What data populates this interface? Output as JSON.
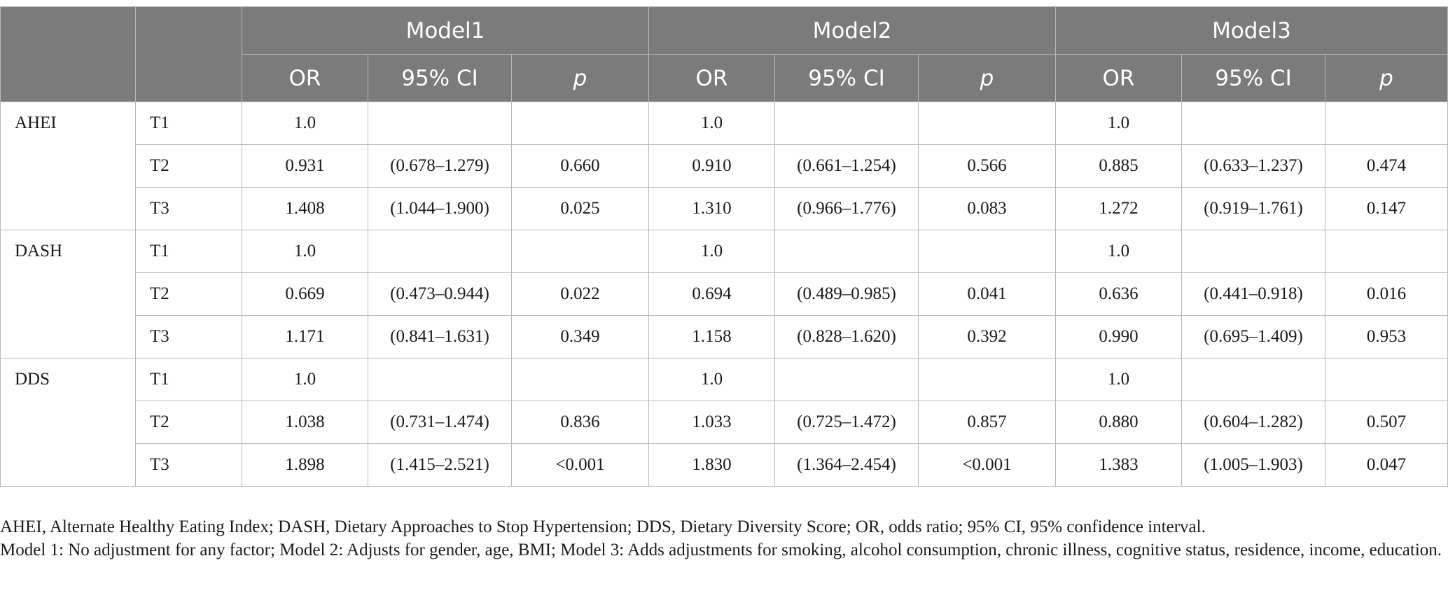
{
  "table": {
    "models": [
      "Model1",
      "Model2",
      "Model3"
    ],
    "subheaders": [
      "OR",
      "95% CI",
      "p"
    ],
    "groups": [
      {
        "measure": "AHEI",
        "rows": [
          {
            "tertile": "T1",
            "values": [
              "1.0",
              "",
              "",
              "1.0",
              "",
              "",
              "1.0",
              "",
              ""
            ]
          },
          {
            "tertile": "T2",
            "values": [
              "0.931",
              "(0.678–1.279)",
              "0.660",
              "0.910",
              "(0.661–1.254)",
              "0.566",
              "0.885",
              "(0.633–1.237)",
              "0.474"
            ]
          },
          {
            "tertile": "T3",
            "values": [
              "1.408",
              "(1.044–1.900)",
              "0.025",
              "1.310",
              "(0.966–1.776)",
              "0.083",
              "1.272",
              "(0.919–1.761)",
              "0.147"
            ]
          }
        ]
      },
      {
        "measure": "DASH",
        "rows": [
          {
            "tertile": "T1",
            "values": [
              "1.0",
              "",
              "",
              "1.0",
              "",
              "",
              "1.0",
              "",
              ""
            ]
          },
          {
            "tertile": "T2",
            "values": [
              "0.669",
              "(0.473–0.944)",
              "0.022",
              "0.694",
              "(0.489–0.985)",
              "0.041",
              "0.636",
              "(0.441–0.918)",
              "0.016"
            ]
          },
          {
            "tertile": "T3",
            "values": [
              "1.171",
              "(0.841–1.631)",
              "0.349",
              "1.158",
              "(0.828–1.620)",
              "0.392",
              "0.990",
              "(0.695–1.409)",
              "0.953"
            ]
          }
        ]
      },
      {
        "measure": "DDS",
        "rows": [
          {
            "tertile": "T1",
            "values": [
              "1.0",
              "",
              "",
              "1.0",
              "",
              "",
              "1.0",
              "",
              ""
            ]
          },
          {
            "tertile": "T2",
            "values": [
              "1.038",
              "(0.731–1.474)",
              "0.836",
              "1.033",
              "(0.725–1.472)",
              "0.857",
              "0.880",
              "(0.604–1.282)",
              "0.507"
            ]
          },
          {
            "tertile": "T3",
            "values": [
              "1.898",
              "(1.415–2.521)",
              "<0.001",
              "1.830",
              "(1.364–2.454)",
              "<0.001",
              "1.383",
              "(1.005–1.903)",
              "0.047"
            ]
          }
        ]
      }
    ]
  },
  "notes": [
    "AHEI, Alternate Healthy Eating Index; DASH, Dietary Approaches to Stop Hypertension; DDS, Dietary Diversity Score; OR, odds ratio; 95% CI, 95% confidence interval.",
    "Model 1: No adjustment for any factor; Model 2: Adjusts for gender, age, BMI; Model 3: Adds adjustments for smoking, alcohol consumption, chronic illness, cognitive status, residence, income, education."
  ],
  "colors": {
    "header_bg": "#7a7b7a",
    "header_text": "#ffffff",
    "grid": "#b8b8b8"
  }
}
